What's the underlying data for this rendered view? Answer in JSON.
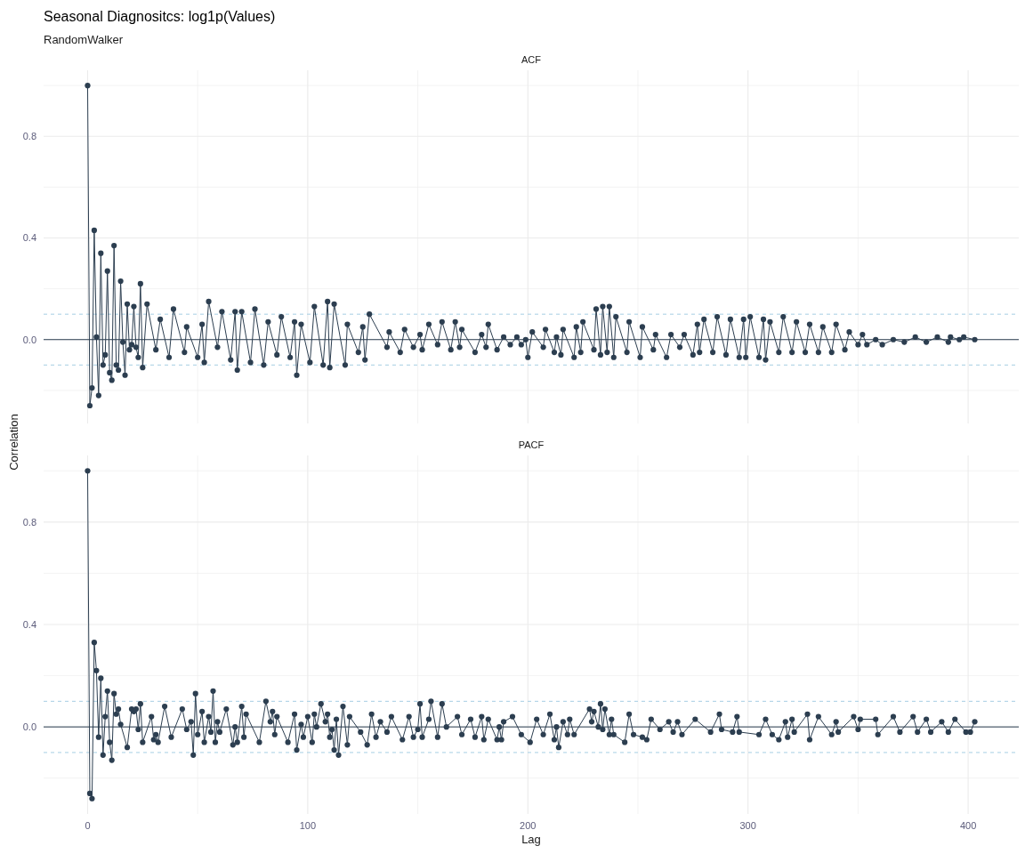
{
  "chart_data": [
    {
      "type": "line",
      "title": "Seasonal Diagnositcs: log1p(Values)",
      "subtitle": "RandomWalker",
      "ylabel": "Correlation",
      "annotations": [
        "ACF"
      ],
      "xlim": [
        -20,
        423
      ],
      "xticks": [
        0,
        {
          "value": 50,
          "label": null
        },
        100,
        {
          "value": 150,
          "label": null
        },
        200,
        {
          "value": 250,
          "label": null
        },
        300,
        {
          "value": 350,
          "label": null
        },
        400
      ],
      "ylim": [
        -0.33,
        1.06
      ],
      "yticks": [
        {
          "value": -0.2,
          "label": null
        },
        {
          "value": 0,
          "label": "0.0"
        },
        {
          "value": 0.2,
          "label": null
        },
        {
          "value": 0.4,
          "label": "0.4"
        },
        {
          "value": 0.6,
          "label": null
        },
        {
          "value": 0.8,
          "label": "0.8"
        },
        {
          "value": 1,
          "label": null
        }
      ],
      "grid": true,
      "tick_labels": "y",
      "marker": "circle",
      "ref_lines": [
        {
          "axis": "y",
          "value": 0,
          "color": "#2c3e50"
        },
        {
          "axis": "y",
          "value": 0.1,
          "color": "#a6cee3",
          "line_style": "dashed"
        },
        {
          "axis": "y",
          "value": -0.1,
          "color": "#a6cee3",
          "line_style": "dashed"
        }
      ],
      "x": [
        0,
        1,
        2,
        3,
        4,
        5,
        6,
        7,
        8,
        9,
        10,
        11,
        12,
        13,
        14,
        15,
        16,
        17,
        18,
        19,
        20,
        21,
        22,
        23,
        24,
        25,
        27,
        31,
        33,
        37,
        39,
        44,
        45,
        50,
        52,
        53,
        55,
        59,
        61,
        65,
        67,
        68,
        70,
        74,
        76,
        80,
        82,
        86,
        88,
        92,
        94,
        95,
        97,
        101,
        103,
        107,
        109,
        110,
        112,
        117,
        118,
        123,
        125,
        126,
        128,
        136,
        137,
        142,
        144,
        148,
        151,
        152,
        155,
        159,
        161,
        165,
        167,
        169,
        170,
        176,
        179,
        181,
        182,
        186,
        189,
        192,
        195,
        197,
        199,
        200,
        202,
        207,
        208,
        212,
        213,
        215,
        216,
        221,
        222,
        224,
        225,
        230,
        231,
        233,
        234,
        236,
        237,
        239,
        240,
        245,
        246,
        251,
        252,
        257,
        258,
        263,
        265,
        269,
        271,
        275,
        277,
        278,
        280,
        284,
        286,
        290,
        292,
        296,
        298,
        299,
        301,
        305,
        307,
        308,
        310,
        314,
        316,
        320,
        322,
        326,
        328,
        332,
        334,
        338,
        340,
        344,
        346,
        350,
        352,
        354,
        358,
        361,
        366,
        371,
        376,
        381,
        386,
        391,
        392,
        396,
        398,
        403
      ],
      "series": [
        {
          "color": "#2c3e50",
          "values": [
            1,
            -0.26,
            -0.19,
            0.43,
            0.01,
            -0.22,
            0.34,
            -0.1,
            -0.06,
            0.27,
            -0.13,
            -0.16,
            0.37,
            -0.1,
            -0.12,
            0.23,
            -0.01,
            -0.14,
            0.14,
            -0.04,
            -0.02,
            0.13,
            -0.03,
            -0.07,
            0.22,
            -0.11,
            0.14,
            -0.04,
            0.08,
            -0.07,
            0.12,
            -0.05,
            0.05,
            -0.07,
            0.06,
            -0.09,
            0.15,
            -0.03,
            0.11,
            -0.08,
            0.11,
            -0.12,
            0.11,
            -0.09,
            0.12,
            -0.1,
            0.07,
            -0.06,
            0.09,
            -0.07,
            0.07,
            -0.14,
            0.06,
            -0.09,
            0.13,
            -0.1,
            0.15,
            -0.11,
            0.14,
            -0.1,
            0.06,
            -0.05,
            0.05,
            -0.08,
            0.1,
            -0.03,
            0.03,
            -0.05,
            0.04,
            -0.03,
            0.02,
            -0.04,
            0.06,
            -0.02,
            0.07,
            -0.04,
            0.07,
            -0.03,
            0.04,
            -0.05,
            0.02,
            -0.03,
            0.06,
            -0.04,
            0.01,
            -0.02,
            0.01,
            -0.02,
            0.0,
            -0.07,
            0.03,
            -0.03,
            0.04,
            -0.05,
            0.01,
            -0.06,
            0.04,
            -0.07,
            0.05,
            -0.05,
            0.07,
            -0.04,
            0.12,
            -0.06,
            0.13,
            -0.05,
            0.13,
            -0.07,
            0.09,
            -0.05,
            0.07,
            -0.07,
            0.05,
            -0.04,
            0.02,
            -0.07,
            0.02,
            -0.03,
            0.02,
            -0.06,
            0.06,
            -0.05,
            0.08,
            -0.05,
            0.09,
            -0.06,
            0.08,
            -0.07,
            0.08,
            -0.07,
            0.09,
            -0.07,
            0.08,
            -0.08,
            0.07,
            -0.05,
            0.09,
            -0.05,
            0.07,
            -0.05,
            0.06,
            -0.05,
            0.05,
            -0.05,
            0.06,
            -0.04,
            0.03,
            -0.02,
            0.02,
            -0.02,
            0.0,
            -0.02,
            0.0,
            -0.01,
            0.01,
            -0.01,
            0.01,
            -0.01,
            0.01,
            0.0,
            0.01,
            0.0
          ]
        }
      ]
    },
    {
      "type": "line",
      "xlabel": "Lag",
      "annotations": [
        "PACF"
      ],
      "xlim": [
        -20,
        423
      ],
      "xticks": [
        0,
        {
          "value": 50,
          "label": null
        },
        100,
        {
          "value": 150,
          "label": null
        },
        200,
        {
          "value": 250,
          "label": null
        },
        300,
        {
          "value": 350,
          "label": null
        },
        400
      ],
      "ylim": [
        -0.34,
        1.06
      ],
      "yticks": [
        {
          "value": -0.2,
          "label": null
        },
        {
          "value": 0,
          "label": "0.0"
        },
        {
          "value": 0.2,
          "label": null
        },
        {
          "value": 0.4,
          "label": "0.4"
        },
        {
          "value": 0.6,
          "label": null
        },
        {
          "value": 0.8,
          "label": "0.8"
        },
        {
          "value": 1,
          "label": null
        }
      ],
      "grid": true,
      "marker": "circle",
      "ref_lines": [
        {
          "axis": "y",
          "value": 0,
          "color": "#2c3e50"
        },
        {
          "axis": "y",
          "value": 0.1,
          "color": "#a6cee3",
          "line_style": "dashed"
        },
        {
          "axis": "y",
          "value": -0.1,
          "color": "#a6cee3",
          "line_style": "dashed"
        }
      ],
      "x": [
        0,
        1,
        2,
        3,
        4,
        5,
        6,
        7,
        8,
        9,
        10,
        11,
        12,
        13,
        14,
        15,
        18,
        20,
        21,
        22,
        23,
        24,
        25,
        29,
        30,
        31,
        32,
        35,
        38,
        43,
        45,
        47,
        48,
        49,
        50,
        52,
        53,
        55,
        56,
        57,
        58,
        59,
        60,
        63,
        66,
        67,
        68,
        70,
        71,
        72,
        78,
        81,
        83,
        84,
        85,
        86,
        91,
        94,
        95,
        97,
        98,
        100,
        102,
        103,
        104,
        106,
        108,
        109,
        110,
        111,
        112,
        113,
        114,
        116,
        118,
        119,
        124,
        127,
        129,
        131,
        133,
        136,
        138,
        143,
        146,
        148,
        150,
        151,
        152,
        155,
        156,
        159,
        161,
        163,
        168,
        170,
        174,
        176,
        179,
        180,
        182,
        186,
        187,
        188,
        189,
        193,
        197,
        201,
        204,
        207,
        210,
        212,
        213,
        214,
        216,
        218,
        219,
        221,
        228,
        229,
        230,
        232,
        233,
        234,
        235,
        237,
        238,
        239,
        244,
        246,
        248,
        252,
        254,
        256,
        260,
        264,
        266,
        268,
        270,
        276,
        283,
        287,
        288,
        293,
        295,
        296,
        305,
        308,
        311,
        314,
        317,
        318,
        320,
        321,
        327,
        328,
        332,
        338,
        340,
        341,
        348,
        350,
        351,
        358,
        359,
        366,
        369,
        375,
        377,
        381,
        383,
        388,
        391,
        394,
        399,
        401,
        403
      ],
      "series": [
        {
          "color": "#2c3e50",
          "values": [
            1,
            -0.26,
            -0.28,
            0.33,
            0.22,
            -0.04,
            0.19,
            -0.11,
            0.04,
            0.14,
            -0.06,
            -0.13,
            0.13,
            0.05,
            0.07,
            0.01,
            -0.08,
            0.07,
            0.06,
            0.07,
            -0.01,
            0.09,
            -0.06,
            0.04,
            -0.05,
            -0.03,
            -0.06,
            0.08,
            -0.04,
            0.07,
            -0.01,
            0.02,
            -0.11,
            0.13,
            -0.03,
            0.06,
            -0.06,
            0.04,
            -0.02,
            0.14,
            -0.06,
            0.02,
            -0.02,
            0.07,
            -0.07,
            0.0,
            -0.06,
            0.08,
            -0.04,
            0.05,
            -0.06,
            0.1,
            0.02,
            0.06,
            -0.03,
            0.04,
            -0.06,
            0.05,
            -0.09,
            0.01,
            -0.04,
            0.04,
            -0.06,
            0.05,
            0.0,
            0.09,
            0.02,
            0.05,
            -0.04,
            -0.01,
            -0.09,
            0.03,
            -0.11,
            0.08,
            -0.07,
            0.04,
            -0.02,
            -0.07,
            0.05,
            -0.04,
            0.02,
            -0.02,
            0.04,
            -0.05,
            0.04,
            -0.04,
            -0.01,
            0.09,
            -0.04,
            0.03,
            0.1,
            -0.04,
            0.09,
            0.0,
            0.04,
            -0.03,
            0.03,
            -0.04,
            0.04,
            -0.05,
            0.03,
            -0.05,
            0.0,
            -0.05,
            0.02,
            0.04,
            -0.03,
            -0.06,
            0.03,
            -0.03,
            0.05,
            -0.05,
            0.0,
            -0.08,
            0.02,
            -0.03,
            0.03,
            -0.03,
            0.07,
            0.02,
            0.06,
            0.0,
            0.09,
            -0.01,
            0.07,
            -0.03,
            0.03,
            -0.03,
            -0.06,
            0.05,
            -0.03,
            -0.04,
            -0.05,
            0.03,
            -0.01,
            0.02,
            -0.02,
            0.02,
            -0.03,
            0.03,
            -0.02,
            0.05,
            -0.01,
            -0.02,
            0.04,
            -0.02,
            -0.03,
            0.03,
            -0.03,
            -0.05,
            0.02,
            -0.04,
            0.03,
            -0.02,
            0.05,
            -0.05,
            0.04,
            -0.03,
            0.02,
            -0.02,
            0.04,
            -0.01,
            0.03,
            0.03,
            -0.03,
            0.04,
            -0.02,
            0.04,
            -0.02,
            0.03,
            -0.02,
            0.02,
            -0.02,
            0.03,
            -0.02,
            -0.02,
            0.02
          ]
        }
      ]
    }
  ]
}
